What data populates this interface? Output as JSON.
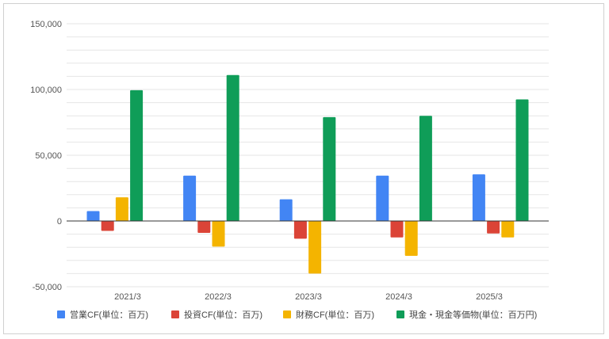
{
  "chart_data": {
    "type": "bar",
    "categories": [
      "2021/3",
      "2022/3",
      "2023/3",
      "2024/3",
      "2025/3"
    ],
    "series": [
      {
        "name": "営業CF(単位：百万)",
        "color": "#4285f4",
        "values": [
          7500,
          34500,
          16500,
          34500,
          35500
        ]
      },
      {
        "name": "投資CF(単位：百万)",
        "color": "#db4437",
        "values": [
          -7500,
          -9000,
          -13500,
          -12500,
          -9500
        ]
      },
      {
        "name": "財務CF(単位：百万)",
        "color": "#f4b400",
        "values": [
          18000,
          -19500,
          -40000,
          -26500,
          -12500
        ]
      },
      {
        "name": "現金・現金等価物(単位：百万円)",
        "color": "#0f9d58",
        "values": [
          99500,
          111000,
          79000,
          80000,
          92500
        ]
      }
    ],
    "yticks": [
      "150,000",
      "100,000",
      "50,000",
      "0",
      "-50,000"
    ],
    "ylim": [
      -50000,
      150000
    ],
    "grid": true,
    "legend_position": "bottom"
  }
}
